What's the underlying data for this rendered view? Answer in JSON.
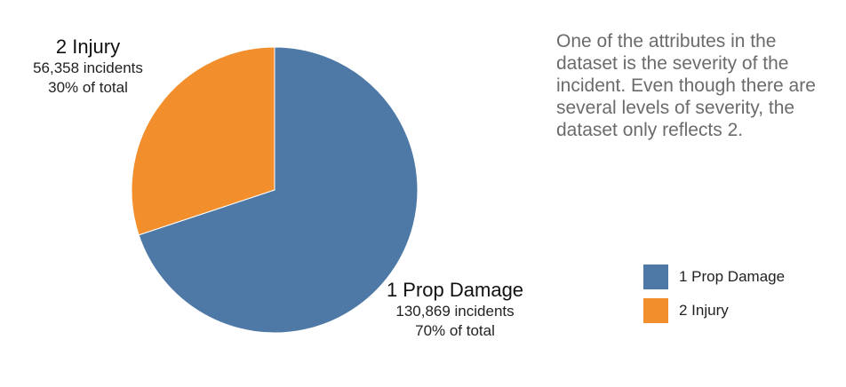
{
  "chart_data": {
    "type": "pie",
    "categories": [
      "1 Prop Damage",
      "2 Injury"
    ],
    "values": [
      130869,
      56358
    ],
    "slices": [
      {
        "name": "1 Prop Damage",
        "value": 130869,
        "count_text": "130,869 incidents",
        "percent_text": "70% of total",
        "color": "#4e79a7"
      },
      {
        "name": "2 Injury",
        "value": 56358,
        "count_text": "56,358 incidents",
        "percent_text": "30% of total",
        "color": "#f28e2b"
      }
    ],
    "legend": {
      "position": "bottom-right",
      "entries": [
        "1 Prop Damage",
        "2 Injury"
      ]
    }
  },
  "description": "One of the attributes in the dataset is the severity of the incident. Even though there are several levels of severity, the dataset only reflects 2."
}
